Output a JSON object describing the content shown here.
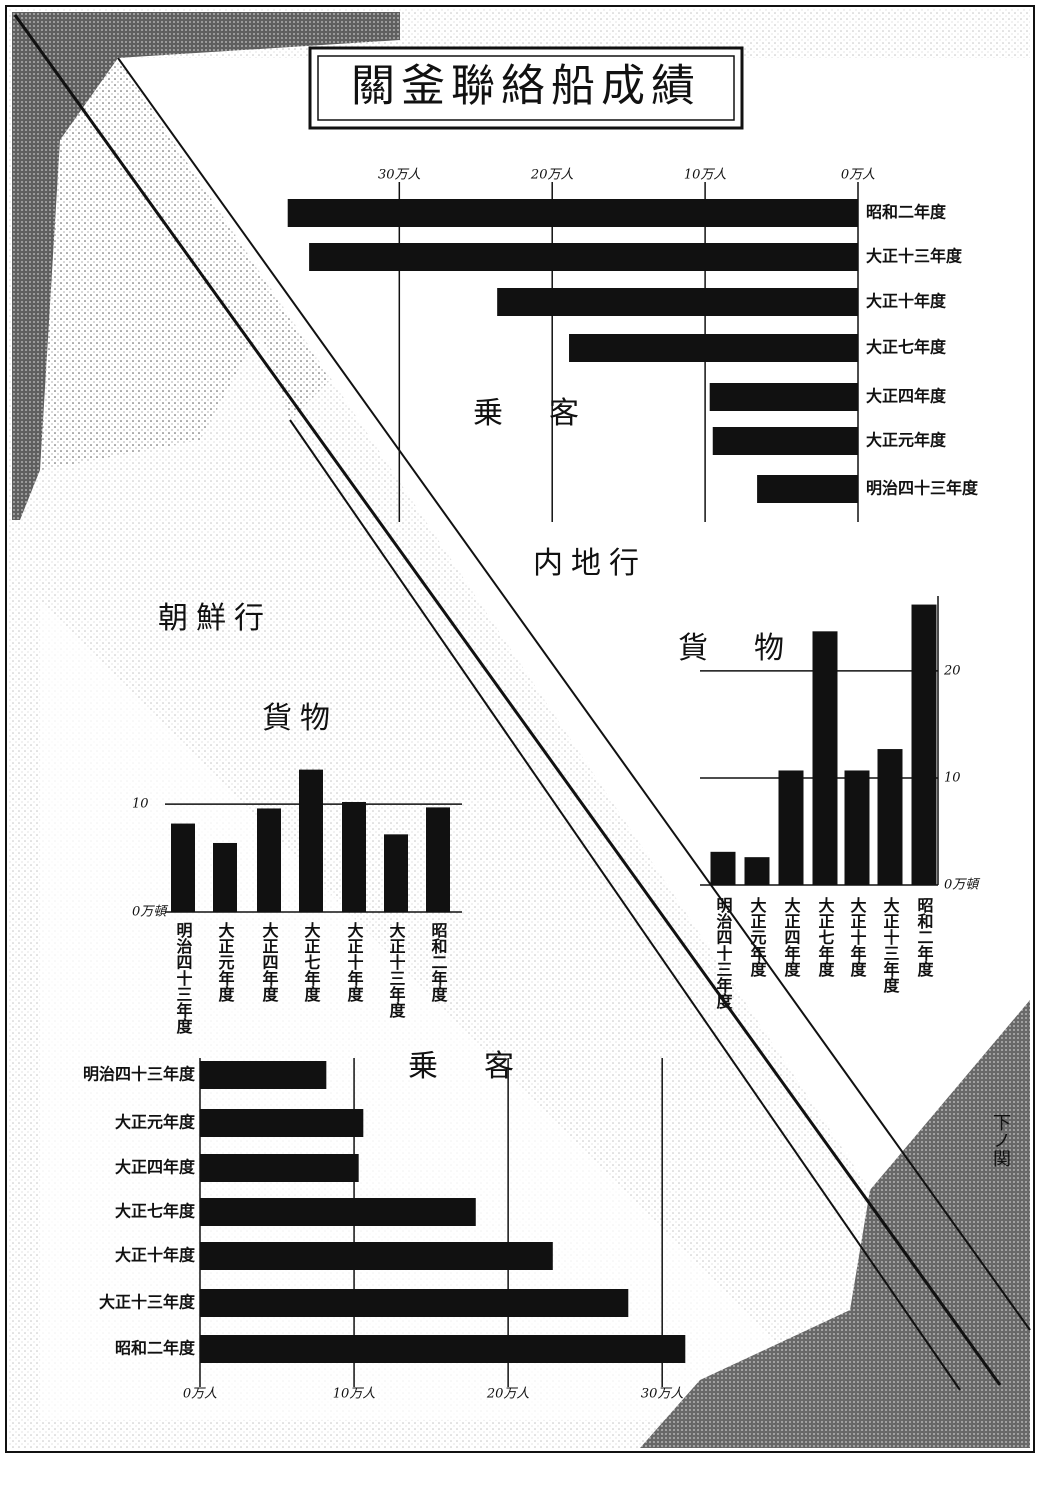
{
  "title": "關釜聯絡船成績",
  "direction_labels": [
    "内地行",
    "朝鮮行"
  ],
  "place_labels": [
    "下ノ関"
  ],
  "chart_data": [
    {
      "type": "bar",
      "orientation": "horizontal",
      "value_axis_direction": "left",
      "title": "乗　客",
      "color": "#111111",
      "categories": [
        "昭和二年度",
        "大正十三年度",
        "大正十年度",
        "大正七年度",
        "大正四年度",
        "大正元年度",
        "明治四十三年度"
      ],
      "values": [
        37.3,
        35.9,
        23.6,
        18.9,
        9.7,
        9.5,
        6.6
      ],
      "xlim": [
        0,
        38
      ],
      "xticks": [
        {
          "value": 30,
          "label": "30万人"
        },
        {
          "value": 20,
          "label": "20万人"
        },
        {
          "value": 10,
          "label": "10万人"
        },
        {
          "value": 0,
          "label": "0万人"
        }
      ],
      "grid": true
    },
    {
      "type": "bar",
      "orientation": "vertical",
      "title": "貨　物",
      "color": "#111111",
      "categories": [
        "明治四十三年度",
        "大正元年度",
        "大正四年度",
        "大正七年度",
        "大正十年度",
        "大正十三年度",
        "昭和二年度"
      ],
      "values": [
        3.1,
        2.6,
        10.7,
        23.7,
        10.7,
        12.7,
        26.2
      ],
      "ylim": [
        0,
        27
      ],
      "yticks": [
        {
          "value": 0,
          "label": "0万頓"
        },
        10,
        20
      ],
      "grid": true
    },
    {
      "type": "bar",
      "orientation": "vertical",
      "title": "貨物",
      "color": "#111111",
      "categories": [
        "明治四十三年度",
        "大正元年度",
        "大正四年度",
        "大正七年度",
        "大正十年度",
        "大正十三年度",
        "昭和二年度"
      ],
      "values": [
        8.2,
        6.4,
        9.6,
        13.2,
        10.2,
        7.2,
        9.7
      ],
      "ylim": [
        0,
        14
      ],
      "yticks": [
        {
          "value": 0,
          "label": "0万頓"
        },
        10
      ],
      "grid": true
    },
    {
      "type": "bar",
      "orientation": "horizontal",
      "value_axis_direction": "right",
      "title": "乗　客",
      "color": "#111111",
      "categories": [
        "明治四十三年度",
        "大正元年度",
        "大正四年度",
        "大正七年度",
        "大正十年度",
        "大正十三年度",
        "昭和二年度"
      ],
      "values": [
        8.2,
        10.6,
        10.3,
        17.9,
        22.9,
        27.8,
        31.5
      ],
      "xlim": [
        0,
        32
      ],
      "xticks": [
        {
          "value": 0,
          "label": "0万人"
        },
        {
          "value": 10,
          "label": "10万人"
        },
        {
          "value": 20,
          "label": "20万人"
        },
        {
          "value": 30,
          "label": "30万人"
        }
      ],
      "grid": true
    }
  ]
}
